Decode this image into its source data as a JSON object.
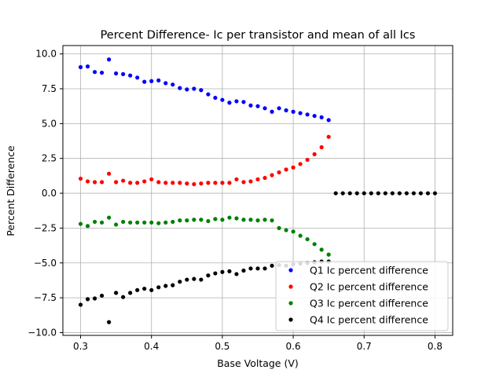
{
  "chart_data": {
    "type": "scatter",
    "title": "Percent Difference- Ic per transistor and mean of all Ics",
    "xlabel": "Base Voltage (V)",
    "ylabel": "Percent Difference",
    "xlim": [
      0.275,
      0.825
    ],
    "ylim": [
      -10.2,
      10.6
    ],
    "xticks": [
      "0.3",
      "0.4",
      "0.5",
      "0.6",
      "0.7",
      "0.8"
    ],
    "yticks": [
      "10.0",
      "7.5",
      "5.0",
      "2.5",
      "0.0",
      "−2.5",
      "−5.0",
      "−7.5",
      "−10.0"
    ],
    "xtick_values": [
      0.3,
      0.4,
      0.5,
      0.6,
      0.7,
      0.8
    ],
    "ytick_values": [
      10.0,
      7.5,
      5.0,
      2.5,
      0.0,
      -2.5,
      -5.0,
      -7.5,
      -10.0
    ],
    "grid": true,
    "legend_position": "lower-right",
    "x": [
      0.3,
      0.31,
      0.32,
      0.33,
      0.34,
      0.35,
      0.36,
      0.37,
      0.38,
      0.39,
      0.4,
      0.41,
      0.42,
      0.43,
      0.44,
      0.45,
      0.46,
      0.47,
      0.48,
      0.49,
      0.5,
      0.51,
      0.52,
      0.53,
      0.54,
      0.55,
      0.56,
      0.57,
      0.58,
      0.59,
      0.6,
      0.61,
      0.62,
      0.63,
      0.64,
      0.65
    ],
    "series": [
      {
        "name": "Q1 Ic percent difference",
        "color": "#0000ff",
        "values": [
          9.05,
          9.1,
          8.7,
          8.65,
          9.6,
          8.6,
          8.55,
          8.45,
          8.3,
          8.0,
          8.05,
          8.1,
          7.9,
          7.8,
          7.55,
          7.45,
          7.5,
          7.4,
          7.1,
          6.85,
          6.7,
          6.5,
          6.6,
          6.55,
          6.3,
          6.25,
          6.1,
          5.85,
          6.1,
          5.95,
          5.85,
          5.75,
          5.65,
          5.55,
          5.45,
          5.25
        ]
      },
      {
        "name": "Q2 Ic percent difference",
        "color": "#ff0000",
        "values": [
          1.05,
          0.85,
          0.8,
          0.8,
          1.4,
          0.8,
          0.9,
          0.75,
          0.75,
          0.85,
          1.0,
          0.8,
          0.75,
          0.75,
          0.75,
          0.7,
          0.65,
          0.7,
          0.75,
          0.75,
          0.75,
          0.75,
          1.0,
          0.8,
          0.85,
          1.0,
          1.1,
          1.3,
          1.5,
          1.7,
          1.85,
          2.1,
          2.4,
          2.8,
          3.3,
          4.05
        ]
      },
      {
        "name": "Q3 Ic percent difference",
        "color": "#008000",
        "values": [
          -2.2,
          -2.35,
          -2.05,
          -2.1,
          -1.75,
          -2.25,
          -2.05,
          -2.1,
          -2.1,
          -2.1,
          -2.1,
          -2.15,
          -2.1,
          -2.05,
          -1.95,
          -1.95,
          -1.9,
          -1.9,
          -2.0,
          -1.85,
          -1.9,
          -1.75,
          -1.8,
          -1.9,
          -1.9,
          -1.95,
          -1.9,
          -1.95,
          -2.5,
          -2.65,
          -2.75,
          -3.05,
          -3.3,
          -3.65,
          -4.05,
          -4.4
        ]
      },
      {
        "name": "Q4 Ic percent difference",
        "color": "#000000",
        "values": [
          -8.0,
          -7.6,
          -7.55,
          -7.35,
          -9.25,
          -7.15,
          -7.45,
          -7.15,
          -6.95,
          -6.85,
          -6.95,
          -6.75,
          -6.65,
          -6.6,
          -6.35,
          -6.2,
          -6.15,
          -6.2,
          -5.9,
          -5.75,
          -5.65,
          -5.6,
          -5.8,
          -5.55,
          -5.4,
          -5.4,
          -5.4,
          -5.2,
          -5.15,
          -5.2,
          -5.1,
          -5.05,
          -5.0,
          -4.95,
          -4.9,
          -4.9
        ],
        "extra_x": [
          0.66,
          0.67,
          0.68,
          0.69,
          0.7,
          0.71,
          0.72,
          0.73,
          0.74,
          0.75,
          0.76,
          0.77,
          0.78,
          0.79,
          0.8
        ],
        "extra_values": [
          0,
          0,
          0,
          0,
          0,
          0,
          0,
          0,
          0,
          0,
          0,
          0,
          0,
          0,
          0
        ]
      }
    ]
  }
}
